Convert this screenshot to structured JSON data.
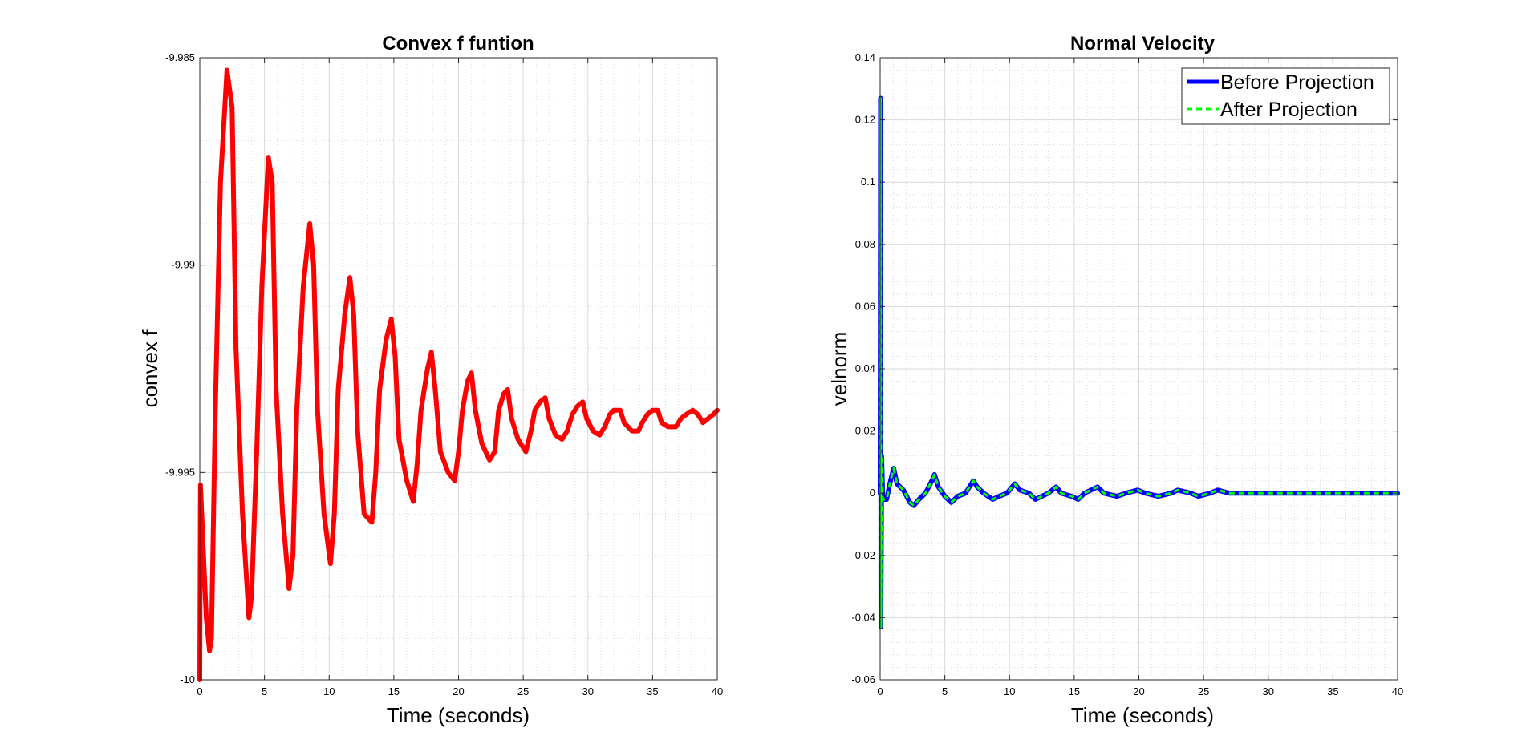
{
  "chart_data": [
    {
      "type": "line",
      "title": "Convex f funtion",
      "xlabel": "Time (seconds)",
      "ylabel": "convex f",
      "xlim": [
        0,
        40
      ],
      "ylim": [
        -10,
        -9.985
      ],
      "xticks": [
        0,
        5,
        10,
        15,
        20,
        25,
        30,
        35,
        40
      ],
      "yticks": [
        -10,
        -9.995,
        -9.99,
        -9.985
      ],
      "xtick_labels": [
        "0",
        "5",
        "10",
        "15",
        "20",
        "25",
        "30",
        "35",
        "40"
      ],
      "ytick_labels": [
        "-10",
        "-9.995",
        "-9.99",
        "-9.985"
      ],
      "grid": true,
      "minor_grid": true,
      "series": [
        {
          "color": "#ff0000",
          "style": "solid",
          "points": [
            [
              0,
              -10.0
            ],
            [
              0.05,
              -9.9953
            ],
            [
              0.5,
              -9.9985
            ],
            [
              0.75,
              -9.9993
            ],
            [
              0.9,
              -9.999
            ],
            [
              1.2,
              -9.9935
            ],
            [
              1.6,
              -9.988
            ],
            [
              2.1,
              -9.9853
            ],
            [
              2.5,
              -9.9862
            ],
            [
              2.8,
              -9.992
            ],
            [
              3.3,
              -9.996
            ],
            [
              3.8,
              -9.9985
            ],
            [
              4.0,
              -9.998
            ],
            [
              4.4,
              -9.9945
            ],
            [
              4.8,
              -9.9905
            ],
            [
              5.3,
              -9.9874
            ],
            [
              5.6,
              -9.988
            ],
            [
              5.9,
              -9.993
            ],
            [
              6.4,
              -9.996
            ],
            [
              6.9,
              -9.9978
            ],
            [
              7.2,
              -9.997
            ],
            [
              7.5,
              -9.9935
            ],
            [
              8.0,
              -9.9905
            ],
            [
              8.5,
              -9.989
            ],
            [
              8.8,
              -9.99
            ],
            [
              9.1,
              -9.9935
            ],
            [
              9.6,
              -9.996
            ],
            [
              10.1,
              -9.9972
            ],
            [
              10.4,
              -9.996
            ],
            [
              10.7,
              -9.993
            ],
            [
              11.2,
              -9.9912
            ],
            [
              11.6,
              -9.9903
            ],
            [
              11.9,
              -9.9912
            ],
            [
              12.2,
              -9.994
            ],
            [
              12.7,
              -9.996
            ],
            [
              13.3,
              -9.9962
            ],
            [
              13.6,
              -9.995
            ],
            [
              13.9,
              -9.993
            ],
            [
              14.4,
              -9.9918
            ],
            [
              14.8,
              -9.9913
            ],
            [
              15.1,
              -9.9922
            ],
            [
              15.4,
              -9.9942
            ],
            [
              16.0,
              -9.9952
            ],
            [
              16.5,
              -9.9957
            ],
            [
              16.8,
              -9.9948
            ],
            [
              17.1,
              -9.9935
            ],
            [
              17.6,
              -9.9925
            ],
            [
              17.9,
              -9.9921
            ],
            [
              18.2,
              -9.993
            ],
            [
              18.6,
              -9.9945
            ],
            [
              19.2,
              -9.995
            ],
            [
              19.7,
              -9.9952
            ],
            [
              20.0,
              -9.9945
            ],
            [
              20.3,
              -9.9935
            ],
            [
              20.7,
              -9.9928
            ],
            [
              21.0,
              -9.9926
            ],
            [
              21.3,
              -9.9935
            ],
            [
              21.8,
              -9.9943
            ],
            [
              22.4,
              -9.9947
            ],
            [
              22.8,
              -9.9945
            ],
            [
              23.1,
              -9.9935
            ],
            [
              23.5,
              -9.9931
            ],
            [
              23.8,
              -9.993
            ],
            [
              24.1,
              -9.9937
            ],
            [
              24.6,
              -9.9942
            ],
            [
              25.2,
              -9.9945
            ],
            [
              25.6,
              -9.994
            ],
            [
              25.9,
              -9.9935
            ],
            [
              26.3,
              -9.9933
            ],
            [
              26.7,
              -9.9932
            ],
            [
              27.0,
              -9.9937
            ],
            [
              27.5,
              -9.9941
            ],
            [
              28.0,
              -9.9942
            ],
            [
              28.4,
              -9.994
            ],
            [
              28.8,
              -9.9936
            ],
            [
              29.2,
              -9.9934
            ],
            [
              29.6,
              -9.9933
            ],
            [
              29.9,
              -9.9937
            ],
            [
              30.4,
              -9.994
            ],
            [
              30.9,
              -9.9941
            ],
            [
              31.3,
              -9.9939
            ],
            [
              31.7,
              -9.9936
            ],
            [
              32.0,
              -9.9935
            ],
            [
              32.5,
              -9.9935
            ],
            [
              32.8,
              -9.9938
            ],
            [
              33.4,
              -9.994
            ],
            [
              33.9,
              -9.994
            ],
            [
              34.2,
              -9.9938
            ],
            [
              34.6,
              -9.9936
            ],
            [
              35.0,
              -9.9935
            ],
            [
              35.4,
              -9.9935
            ],
            [
              35.7,
              -9.9938
            ],
            [
              36.2,
              -9.9939
            ],
            [
              36.8,
              -9.9939
            ],
            [
              37.2,
              -9.9937
            ],
            [
              37.6,
              -9.9936
            ],
            [
              38.1,
              -9.9935
            ],
            [
              38.5,
              -9.9936
            ],
            [
              38.9,
              -9.9938
            ],
            [
              39.3,
              -9.9937
            ],
            [
              39.7,
              -9.9936
            ],
            [
              40.0,
              -9.9935
            ]
          ]
        }
      ]
    },
    {
      "type": "line",
      "title": "Normal Velocity",
      "xlabel": "Time (seconds)",
      "ylabel": "velnorm",
      "xlim": [
        0,
        40
      ],
      "ylim": [
        -0.06,
        0.14
      ],
      "xticks": [
        0,
        5,
        10,
        15,
        20,
        25,
        30,
        35,
        40
      ],
      "yticks": [
        -0.06,
        -0.04,
        -0.02,
        0,
        0.02,
        0.04,
        0.06,
        0.08,
        0.1,
        0.12,
        0.14
      ],
      "xtick_labels": [
        "0",
        "5",
        "10",
        "15",
        "20",
        "25",
        "30",
        "35",
        "40"
      ],
      "ytick_labels": [
        "-0.06",
        "-0.04",
        "-0.02",
        "0",
        "0.02",
        "0.04",
        "0.06",
        "0.08",
        "0.1",
        "0.12",
        "0.14"
      ],
      "grid": true,
      "minor_grid": true,
      "legend_position": "top-right",
      "series": [
        {
          "name": "Before Projection",
          "color": "#0000ff",
          "style": "solid",
          "points": [
            [
              0,
              0.0
            ],
            [
              0.03,
              0.127
            ],
            [
              0.06,
              -0.043
            ],
            [
              0.12,
              0.012
            ],
            [
              0.2,
              -0.002
            ],
            [
              0.5,
              -0.002
            ],
            [
              0.8,
              0.004
            ],
            [
              1.05,
              0.008
            ],
            [
              1.3,
              0.003
            ],
            [
              1.8,
              0.001
            ],
            [
              2.3,
              -0.003
            ],
            [
              2.6,
              -0.004
            ],
            [
              3.0,
              -0.002
            ],
            [
              3.5,
              0.0
            ],
            [
              4.0,
              0.004
            ],
            [
              4.2,
              0.006
            ],
            [
              4.5,
              0.002
            ],
            [
              5.0,
              -0.001
            ],
            [
              5.5,
              -0.003
            ],
            [
              6.0,
              -0.001
            ],
            [
              6.6,
              0.0
            ],
            [
              7.2,
              0.004
            ],
            [
              7.5,
              0.002
            ],
            [
              8.0,
              0.0
            ],
            [
              8.7,
              -0.002
            ],
            [
              9.2,
              -0.001
            ],
            [
              9.8,
              0.0
            ],
            [
              10.4,
              0.003
            ],
            [
              10.8,
              0.001
            ],
            [
              11.5,
              0.0
            ],
            [
              12.0,
              -0.002
            ],
            [
              12.5,
              -0.001
            ],
            [
              13.0,
              0.0
            ],
            [
              13.6,
              0.002
            ],
            [
              14.0,
              0.0
            ],
            [
              14.8,
              -0.001
            ],
            [
              15.3,
              -0.002
            ],
            [
              15.8,
              0.0
            ],
            [
              16.8,
              0.002
            ],
            [
              17.3,
              0.0
            ],
            [
              18.3,
              -0.001
            ],
            [
              19.0,
              0.0
            ],
            [
              19.9,
              0.001
            ],
            [
              20.5,
              0.0
            ],
            [
              21.5,
              -0.001
            ],
            [
              22.5,
              0.0
            ],
            [
              23.0,
              0.001
            ],
            [
              24.0,
              0.0
            ],
            [
              24.6,
              -0.001
            ],
            [
              25.5,
              0.0
            ],
            [
              26.1,
              0.001
            ],
            [
              27.0,
              0.0
            ],
            [
              28.0,
              0.0
            ],
            [
              29.0,
              0.0
            ],
            [
              30.0,
              0.0
            ],
            [
              32.0,
              0.0
            ],
            [
              34.0,
              0.0
            ],
            [
              36.0,
              0.0
            ],
            [
              38.0,
              0.0
            ],
            [
              40.0,
              0.0
            ]
          ]
        },
        {
          "name": "After Projection",
          "color": "#00ff00",
          "style": "dashed",
          "points": [
            [
              0,
              0.0
            ],
            [
              0.03,
              0.127
            ],
            [
              0.06,
              -0.043
            ],
            [
              0.12,
              0.012
            ],
            [
              0.2,
              -0.002
            ],
            [
              0.5,
              -0.002
            ],
            [
              0.8,
              0.004
            ],
            [
              1.05,
              0.008
            ],
            [
              1.3,
              0.003
            ],
            [
              1.8,
              0.001
            ],
            [
              2.3,
              -0.003
            ],
            [
              2.6,
              -0.004
            ],
            [
              3.0,
              -0.002
            ],
            [
              3.5,
              0.0
            ],
            [
              4.0,
              0.004
            ],
            [
              4.2,
              0.006
            ],
            [
              4.5,
              0.002
            ],
            [
              5.0,
              -0.001
            ],
            [
              5.5,
              -0.003
            ],
            [
              6.0,
              -0.001
            ],
            [
              6.6,
              0.0
            ],
            [
              7.2,
              0.004
            ],
            [
              7.5,
              0.002
            ],
            [
              8.0,
              0.0
            ],
            [
              8.7,
              -0.002
            ],
            [
              9.2,
              -0.001
            ],
            [
              9.8,
              0.0
            ],
            [
              10.4,
              0.003
            ],
            [
              10.8,
              0.001
            ],
            [
              11.5,
              0.0
            ],
            [
              12.0,
              -0.002
            ],
            [
              12.5,
              -0.001
            ],
            [
              13.0,
              0.0
            ],
            [
              13.6,
              0.002
            ],
            [
              14.0,
              0.0
            ],
            [
              14.8,
              -0.001
            ],
            [
              15.3,
              -0.002
            ],
            [
              15.8,
              0.0
            ],
            [
              16.8,
              0.002
            ],
            [
              17.3,
              0.0
            ],
            [
              18.3,
              -0.001
            ],
            [
              19.0,
              0.0
            ],
            [
              19.9,
              0.001
            ],
            [
              20.5,
              0.0
            ],
            [
              21.5,
              -0.001
            ],
            [
              22.5,
              0.0
            ],
            [
              23.0,
              0.001
            ],
            [
              24.0,
              0.0
            ],
            [
              24.6,
              -0.001
            ],
            [
              25.5,
              0.0
            ],
            [
              26.1,
              0.001
            ],
            [
              27.0,
              0.0
            ],
            [
              28.0,
              0.0
            ],
            [
              29.0,
              0.0
            ],
            [
              30.0,
              0.0
            ],
            [
              32.0,
              0.0
            ],
            [
              34.0,
              0.0
            ],
            [
              36.0,
              0.0
            ],
            [
              38.0,
              0.0
            ],
            [
              40.0,
              0.0
            ]
          ]
        }
      ]
    }
  ]
}
